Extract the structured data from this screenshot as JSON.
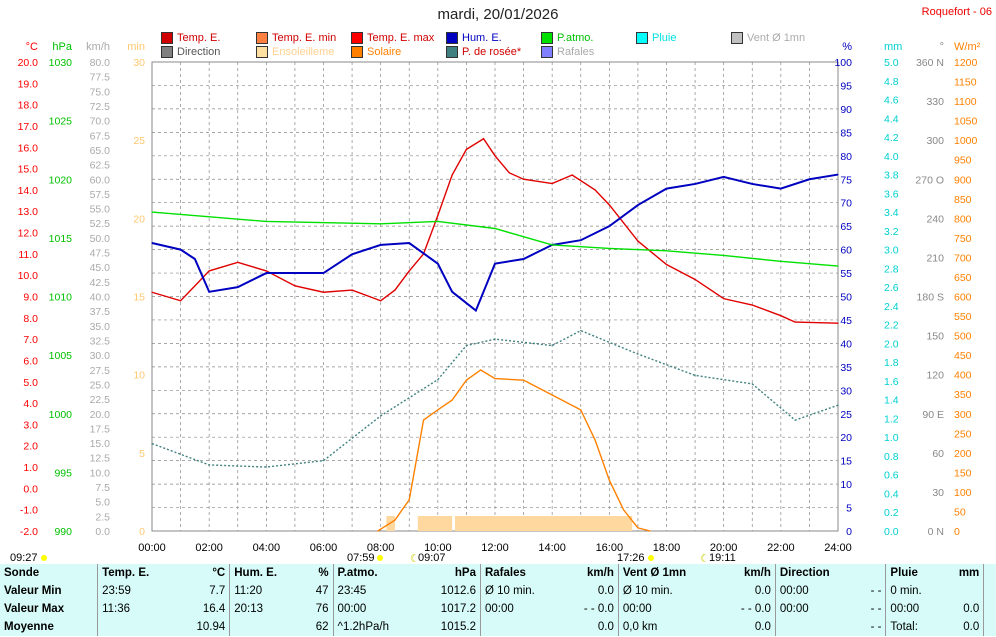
{
  "header": {
    "title": "mardi, 20/01/2026",
    "site": "Roquefort - 06"
  },
  "legend": [
    {
      "label": "Temp. E.",
      "color": "#d00000",
      "text": "#d00000"
    },
    {
      "label": "Temp. E. min",
      "color": "#ff8040",
      "text": "#d00000"
    },
    {
      "label": "Temp. E. max",
      "color": "#ff0000",
      "text": "#d00000"
    },
    {
      "label": "Hum. E.",
      "color": "#0000c0",
      "text": "#0000c0"
    },
    {
      "label": "P.atmo.",
      "color": "#00e000",
      "text": "#00c000"
    },
    {
      "label": "Pluie",
      "color": "#00ffff",
      "text": "#00e0e0"
    },
    {
      "label": "Vent Ø 1mn",
      "color": "#c0c0c0",
      "text": "#aaaaaa"
    },
    {
      "label": "Direction",
      "color": "#808080",
      "text": "#555555"
    },
    {
      "label": "Ensoleilleme",
      "color": "#ffe0a0",
      "text": "#ffd090"
    },
    {
      "label": "Solaire",
      "color": "#ff8000",
      "text": "#ff8000"
    },
    {
      "label": "P. de rosée*",
      "color": "#408080",
      "text": "#d00000"
    },
    {
      "label": "Rafales",
      "color": "#8080ff",
      "text": "#aaaaaa"
    }
  ],
  "chart_data": {
    "type": "line",
    "title": "mardi, 20/01/2026",
    "x_ticks": [
      "00:00",
      "02:00",
      "04:00",
      "06:00",
      "08:00",
      "10:00",
      "12:00",
      "14:00",
      "16:00",
      "18:00",
      "20:00",
      "22:00",
      "24:00"
    ],
    "xlim": [
      0,
      24
    ],
    "axes": {
      "temp": {
        "unit": "°C",
        "range": [
          -2,
          20
        ],
        "color": "#ff0000"
      },
      "press": {
        "unit": "hPa",
        "range": [
          990,
          1030
        ],
        "color": "#00c000"
      },
      "wind": {
        "unit": "km/h",
        "range": [
          0,
          80
        ],
        "color": "#aaaaaa"
      },
      "sun": {
        "unit": "min",
        "range": [
          0,
          30
        ],
        "color": "#ffc870"
      },
      "hum": {
        "unit": "%",
        "range": [
          0,
          100
        ],
        "color": "#0000c0"
      },
      "rain": {
        "unit": "mm",
        "range": [
          0,
          5
        ],
        "color": "#00d0d0"
      },
      "dir": {
        "unit": "°",
        "range": [
          0,
          360
        ],
        "color": "#888888"
      },
      "solar": {
        "unit": "W/m²",
        "range": [
          0,
          1200
        ],
        "color": "#ff8000"
      }
    },
    "series": [
      {
        "name": "Temp. E.",
        "axis": "temp",
        "color": "#e00000",
        "points": [
          [
            0,
            9.2
          ],
          [
            1,
            8.8
          ],
          [
            1.5,
            9.5
          ],
          [
            2,
            10.2
          ],
          [
            3,
            10.6
          ],
          [
            4,
            10.2
          ],
          [
            5,
            9.5
          ],
          [
            6,
            9.2
          ],
          [
            7,
            9.3
          ],
          [
            8,
            8.8
          ],
          [
            8.5,
            9.3
          ],
          [
            9,
            10.2
          ],
          [
            9.5,
            11.0
          ],
          [
            10,
            12.8
          ],
          [
            10.5,
            14.7
          ],
          [
            11,
            15.9
          ],
          [
            11.6,
            16.4
          ],
          [
            12,
            15.6
          ],
          [
            12.5,
            14.8
          ],
          [
            13,
            14.5
          ],
          [
            14,
            14.3
          ],
          [
            14.7,
            14.7
          ],
          [
            15.5,
            14.0
          ],
          [
            16,
            13.3
          ],
          [
            17,
            11.6
          ],
          [
            18,
            10.5
          ],
          [
            19,
            9.8
          ],
          [
            20,
            8.9
          ],
          [
            21,
            8.6
          ],
          [
            22,
            8.1
          ],
          [
            22.5,
            7.8
          ],
          [
            24,
            7.75
          ]
        ]
      },
      {
        "name": "Hum. E.",
        "axis": "hum",
        "color": "#0000c0",
        "points": [
          [
            0,
            61.4
          ],
          [
            1,
            60
          ],
          [
            1.5,
            58
          ],
          [
            2,
            51
          ],
          [
            3,
            52
          ],
          [
            4,
            55
          ],
          [
            5,
            55
          ],
          [
            6,
            55
          ],
          [
            7,
            59
          ],
          [
            8,
            61
          ],
          [
            9,
            61.4
          ],
          [
            10,
            57
          ],
          [
            10.5,
            51
          ],
          [
            11.33,
            47
          ],
          [
            12,
            57
          ],
          [
            13,
            58
          ],
          [
            14,
            61
          ],
          [
            15,
            62
          ],
          [
            16,
            65
          ],
          [
            17,
            69.5
          ],
          [
            18,
            73
          ],
          [
            19,
            74
          ],
          [
            20,
            75.5
          ],
          [
            21,
            74
          ],
          [
            22,
            73
          ],
          [
            23,
            75
          ],
          [
            24,
            76
          ]
        ]
      },
      {
        "name": "P.atmo.",
        "axis": "press",
        "color": "#00e000",
        "points": [
          [
            0,
            1017.2
          ],
          [
            4,
            1016.4
          ],
          [
            8,
            1016.2
          ],
          [
            10,
            1016.4
          ],
          [
            12,
            1015.8
          ],
          [
            14,
            1014.4
          ],
          [
            16,
            1014.1
          ],
          [
            18,
            1013.9
          ],
          [
            20,
            1013.5
          ],
          [
            22,
            1013.0
          ],
          [
            24,
            1012.6
          ]
        ]
      },
      {
        "name": "P. de rosée*",
        "axis": "temp",
        "color": "#408080",
        "dash": "2,2",
        "points": [
          [
            0,
            2.1
          ],
          [
            2,
            1.1
          ],
          [
            4,
            1.0
          ],
          [
            6,
            1.3
          ],
          [
            8,
            3.4
          ],
          [
            10,
            5.1
          ],
          [
            11,
            6.7
          ],
          [
            12,
            7.0
          ],
          [
            14,
            6.7
          ],
          [
            15,
            7.4
          ],
          [
            17,
            6.3
          ],
          [
            19,
            5.3
          ],
          [
            21,
            4.9
          ],
          [
            22.5,
            3.2
          ],
          [
            24,
            3.9
          ]
        ]
      },
      {
        "name": "Solaire",
        "axis": "solar",
        "color": "#ff8000",
        "points": [
          [
            7.9,
            0
          ],
          [
            8.5,
            28
          ],
          [
            9,
            80
          ],
          [
            9.5,
            284
          ],
          [
            10,
            310
          ],
          [
            10.5,
            335
          ],
          [
            11,
            386
          ],
          [
            11.5,
            412
          ],
          [
            12,
            390
          ],
          [
            13,
            386
          ],
          [
            14,
            348
          ],
          [
            15,
            310
          ],
          [
            15.5,
            233
          ],
          [
            16,
            130
          ],
          [
            16.5,
            54
          ],
          [
            17,
            8
          ],
          [
            17.43,
            0
          ]
        ]
      }
    ],
    "sunshine_bars": [
      [
        8.2,
        8.5,
        1
      ],
      [
        9.3,
        10.5,
        1
      ],
      [
        10.6,
        16.8,
        1
      ]
    ],
    "sun_events": {
      "sunrise": "07:59",
      "sunset": "17:26",
      "moonrise": "09:07",
      "moonset": "19:11",
      "day_length": "09:27"
    }
  },
  "table": {
    "headers": [
      "Sonde",
      "Temp. E.",
      "°C",
      "Hum. E.",
      "%",
      "P.atmo.",
      "hPa",
      "Rafales",
      "km/h",
      "Vent Ø 1mn",
      "km/h",
      "Direction",
      "",
      "Pluie",
      "mm"
    ],
    "rows": [
      [
        "Valeur Min",
        "23:59",
        "7.7",
        "11:20",
        "47",
        "23:45",
        "1012.6",
        "Ø 10 min.",
        "0.0",
        "Ø 10 min.",
        "0.0",
        "00:00",
        "- -",
        "0 min.",
        ""
      ],
      [
        "Valeur Max",
        "11:36",
        "16.4",
        "20:13",
        "76",
        "00:00",
        "1017.2",
        "00:00",
        "- - 0.0",
        "00:00",
        "- - 0.0",
        "00:00",
        "- -",
        "00:00",
        "0.0"
      ],
      [
        "Moyenne",
        "",
        "10.94",
        "",
        "62",
        "^1.2hPa/h",
        "1015.2",
        "",
        "0.0",
        "0,0 km",
        "0.0",
        "",
        "- -",
        "Total:",
        "0.0"
      ]
    ]
  }
}
